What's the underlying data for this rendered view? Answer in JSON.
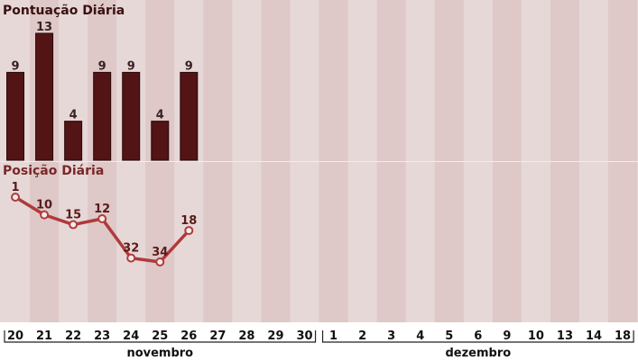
{
  "chart_data": [
    {
      "type": "bar",
      "title": "Pontuação Diária",
      "categories": [
        "20",
        "21",
        "22",
        "23",
        "24",
        "25",
        "26",
        "27",
        "28",
        "29",
        "30",
        "1",
        "2",
        "3",
        "4",
        "5",
        "6",
        "9",
        "10",
        "13",
        "14",
        "18"
      ],
      "values": [
        9,
        13,
        4,
        9,
        9,
        4,
        9,
        null,
        null,
        null,
        null,
        null,
        null,
        null,
        null,
        null,
        null,
        null,
        null,
        null,
        null,
        null
      ],
      "ylim": [
        0,
        13
      ]
    },
    {
      "type": "line",
      "title": "Posição Diária",
      "categories": [
        "20",
        "21",
        "22",
        "23",
        "24",
        "25",
        "26",
        "27",
        "28",
        "29",
        "30",
        "1",
        "2",
        "3",
        "4",
        "5",
        "6",
        "9",
        "10",
        "13",
        "14",
        "18"
      ],
      "values": [
        1,
        10,
        15,
        12,
        32,
        34,
        18,
        null,
        null,
        null,
        null,
        null,
        null,
        null,
        null,
        null,
        null,
        null,
        null,
        null,
        null,
        null
      ],
      "y_inverted": true,
      "ylim": [
        1,
        34
      ]
    }
  ],
  "x_axis": {
    "ticks": [
      "20",
      "21",
      "22",
      "23",
      "24",
      "25",
      "26",
      "27",
      "28",
      "29",
      "30",
      "1",
      "2",
      "3",
      "4",
      "5",
      "6",
      "9",
      "10",
      "13",
      "14",
      "18"
    ],
    "groups": [
      {
        "label": "novembro",
        "count": 11
      },
      {
        "label": "dezembro",
        "count": 11
      }
    ]
  },
  "colors": {
    "bar": "#521414",
    "line": "#b03a3a",
    "stripe_dark": "#dec8c8",
    "stripe_light": "#e7d8d8",
    "title": "#7a2828"
  }
}
